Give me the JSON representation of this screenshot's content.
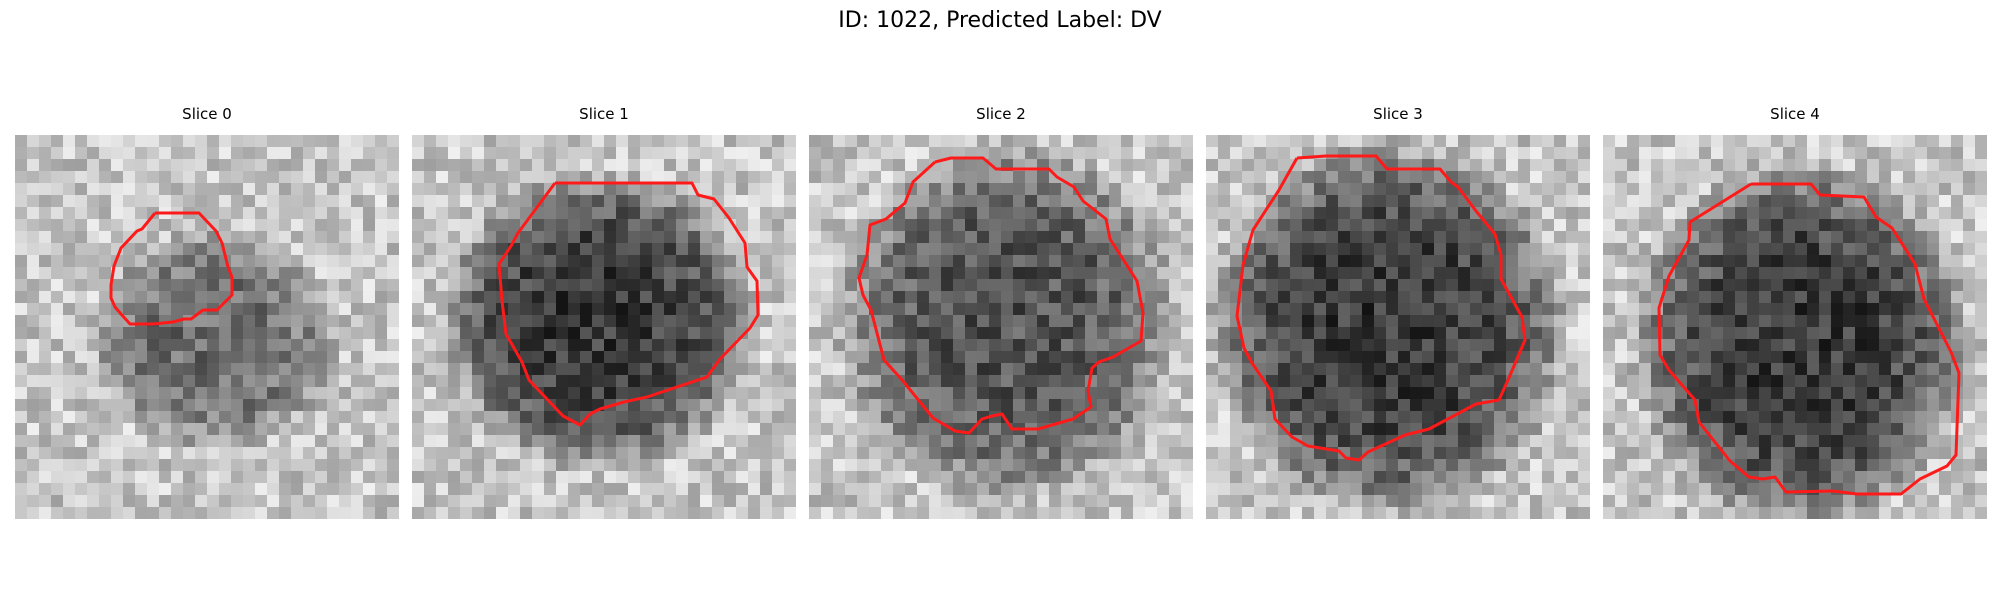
{
  "figure": {
    "title": "ID: 1022, Predicted Label: DV"
  },
  "colors": {
    "contour": "#ff1a1a",
    "background": "#ffffff"
  },
  "slices": [
    {
      "label": "Slice 0"
    },
    {
      "label": "Slice 1"
    },
    {
      "label": "Slice 2"
    },
    {
      "label": "Slice 3"
    },
    {
      "label": "Slice 4"
    }
  ]
}
